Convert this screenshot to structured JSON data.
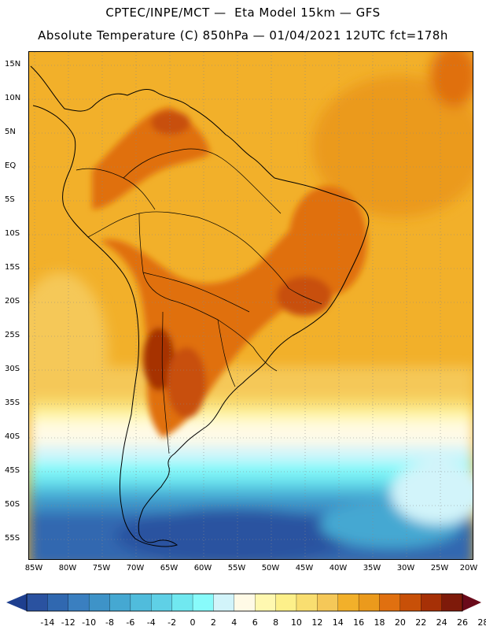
{
  "header": {
    "line1": "CPTEC/INPE/MCT —  Eta Model 15km — GFS",
    "line2": "Absolute Temperature (C) 850hPa — 01/04/2021 12UTC fct=178h"
  },
  "axes": {
    "lat_labels": [
      "15N",
      "10N",
      "5N",
      "EQ",
      "5S",
      "10S",
      "15S",
      "20S",
      "25S",
      "30S",
      "35S",
      "40S",
      "45S",
      "50S",
      "55S"
    ],
    "lon_labels": [
      "85W",
      "80W",
      "75W",
      "70W",
      "65W",
      "60W",
      "55W",
      "50W",
      "45W",
      "40W",
      "35W",
      "30W",
      "25W",
      "20W"
    ]
  },
  "colorbar": {
    "labels": [
      "-14",
      "-12",
      "-10",
      "-8",
      "-6",
      "-4",
      "-2",
      "0",
      "2",
      "4",
      "6",
      "8",
      "10",
      "12",
      "14",
      "16",
      "18",
      "20",
      "22",
      "24",
      "26",
      "28"
    ],
    "colors": [
      "#1e3f8f",
      "#2a52a0",
      "#3068b0",
      "#3a7fc0",
      "#3e93c8",
      "#45a8d2",
      "#50bcdc",
      "#5fd0e6",
      "#70e8f0",
      "#88fbfb",
      "#d2f4fa",
      "#fffae6",
      "#fff8b0",
      "#fdf08a",
      "#f9de70",
      "#f5c858",
      "#f2b02a",
      "#eb9a1c",
      "#e07010",
      "#c85008",
      "#a63006",
      "#7e1a0a",
      "#6a0a1a"
    ]
  },
  "map": {
    "ocean_color_dominant": "#f2b02a",
    "land_hot_color": "#e07010",
    "cold_color": "#3068b0"
  }
}
